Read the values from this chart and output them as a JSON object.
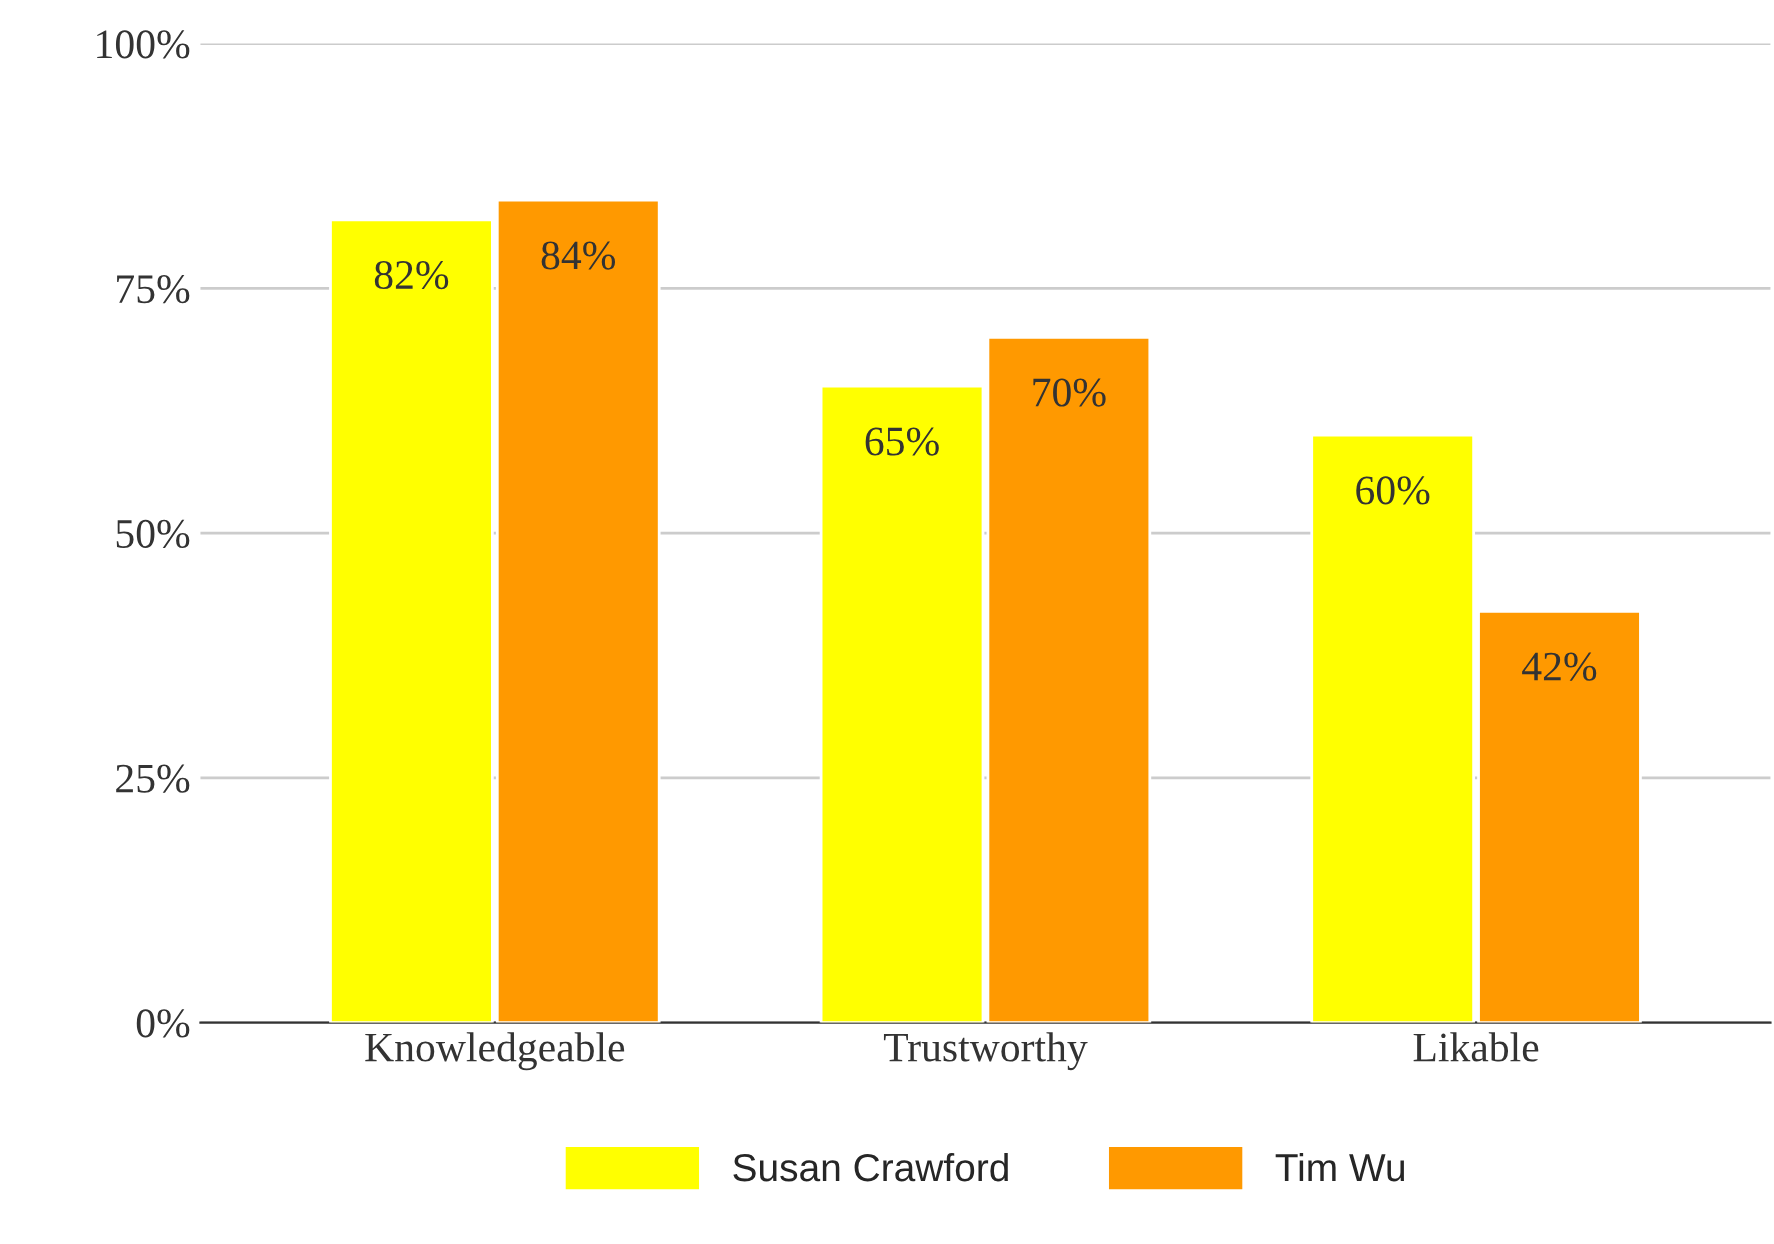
{
  "chart_data": {
    "type": "bar",
    "categories": [
      "Knowledgeable",
      "Trustworthy",
      "Likable"
    ],
    "series": [
      {
        "name": "Susan Crawford",
        "color": "#ffff00",
        "values": [
          82,
          65,
          60
        ],
        "value_labels": [
          "82%",
          "65%",
          "60%"
        ]
      },
      {
        "name": "Tim Wu",
        "color": "#ff9900",
        "values": [
          84,
          70,
          42
        ],
        "value_labels": [
          "84%",
          "70%",
          "42%"
        ]
      }
    ],
    "ylim": [
      0,
      100
    ],
    "yticks": [
      {
        "value": 0,
        "label": "0%"
      },
      {
        "value": 25,
        "label": "25%"
      },
      {
        "value": 50,
        "label": "50%"
      },
      {
        "value": 75,
        "label": "75%"
      },
      {
        "value": 100,
        "label": "100%"
      }
    ],
    "grid": "y",
    "legend": "bottom"
  }
}
